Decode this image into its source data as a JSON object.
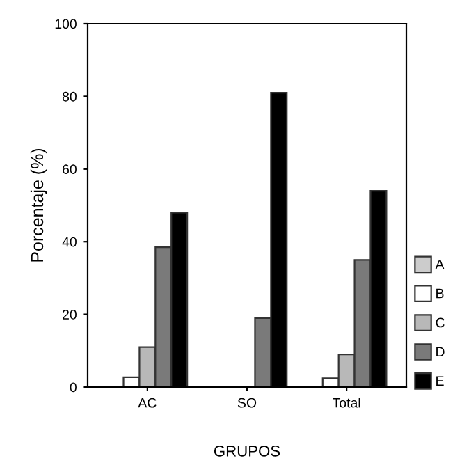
{
  "chart_data": {
    "type": "bar",
    "xlabel": "GRUPOS",
    "ylabel": "Porcentaje (%)",
    "categories": [
      "AC",
      "SO",
      "Total"
    ],
    "series": [
      {
        "name": "A",
        "color": "#cccccc",
        "values": [
          0,
          0,
          0
        ]
      },
      {
        "name": "B",
        "color": "#ffffff",
        "values": [
          2.7,
          0,
          2.4
        ]
      },
      {
        "name": "C",
        "color": "#b8b8b8",
        "values": [
          11,
          0,
          9
        ]
      },
      {
        "name": "D",
        "color": "#7a7a7a",
        "values": [
          38.5,
          19,
          35
        ]
      },
      {
        "name": "E",
        "color": "#000000",
        "values": [
          48,
          81,
          54
        ]
      }
    ],
    "ylim": [
      0,
      100
    ],
    "yticks": [
      0,
      20,
      40,
      60,
      80,
      100
    ],
    "grid": false,
    "legend": "right"
  }
}
